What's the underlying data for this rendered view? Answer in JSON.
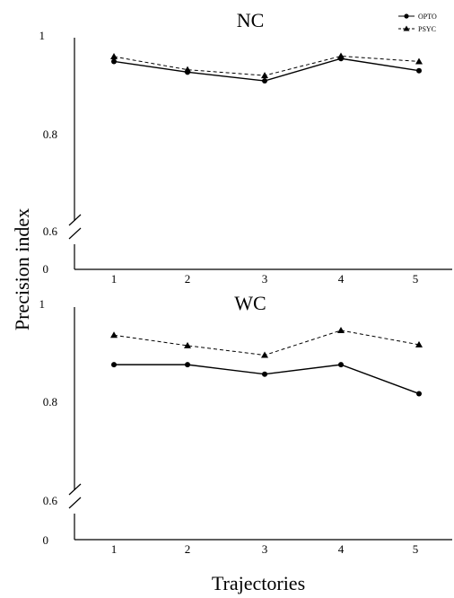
{
  "ylabel": "Precision index",
  "xlabel": "Trajectories",
  "legend": {
    "placement": "top-right",
    "entries": [
      {
        "name": "OPTO",
        "marker": "circle",
        "line": "solid"
      },
      {
        "name": "PSYC",
        "marker": "triangle",
        "line": "dashed"
      }
    ]
  },
  "chart_data": [
    {
      "type": "line",
      "title": "NC",
      "x": [
        1,
        2,
        3,
        4,
        5
      ],
      "xticks": [
        "1",
        "2",
        "3",
        "4",
        "5"
      ],
      "yticks": [
        "1",
        "0.8",
        "0.6",
        "0"
      ],
      "axis_break": true,
      "grid": false,
      "series": [
        {
          "name": "OPTO",
          "style": "solid",
          "marker": "circle",
          "values": [
            0.951,
            0.929,
            0.911,
            0.957,
            0.932
          ]
        },
        {
          "name": "PSYC",
          "style": "dashed",
          "marker": "triangle",
          "values": [
            0.961,
            0.934,
            0.922,
            0.962,
            0.951
          ]
        }
      ]
    },
    {
      "type": "line",
      "title": "WC",
      "x": [
        1,
        2,
        3,
        4,
        5
      ],
      "xticks": [
        "1",
        "2",
        "3",
        "4",
        "5"
      ],
      "yticks": [
        "1",
        "0.8",
        "0.6",
        "0"
      ],
      "axis_break": true,
      "grid": false,
      "series": [
        {
          "name": "OPTO",
          "style": "solid",
          "marker": "circle",
          "values": [
            0.879,
            0.879,
            0.859,
            0.879,
            0.818
          ]
        },
        {
          "name": "PSYC",
          "style": "dashed",
          "marker": "triangle",
          "values": [
            0.941,
            0.919,
            0.899,
            0.951,
            0.921
          ]
        }
      ]
    }
  ]
}
